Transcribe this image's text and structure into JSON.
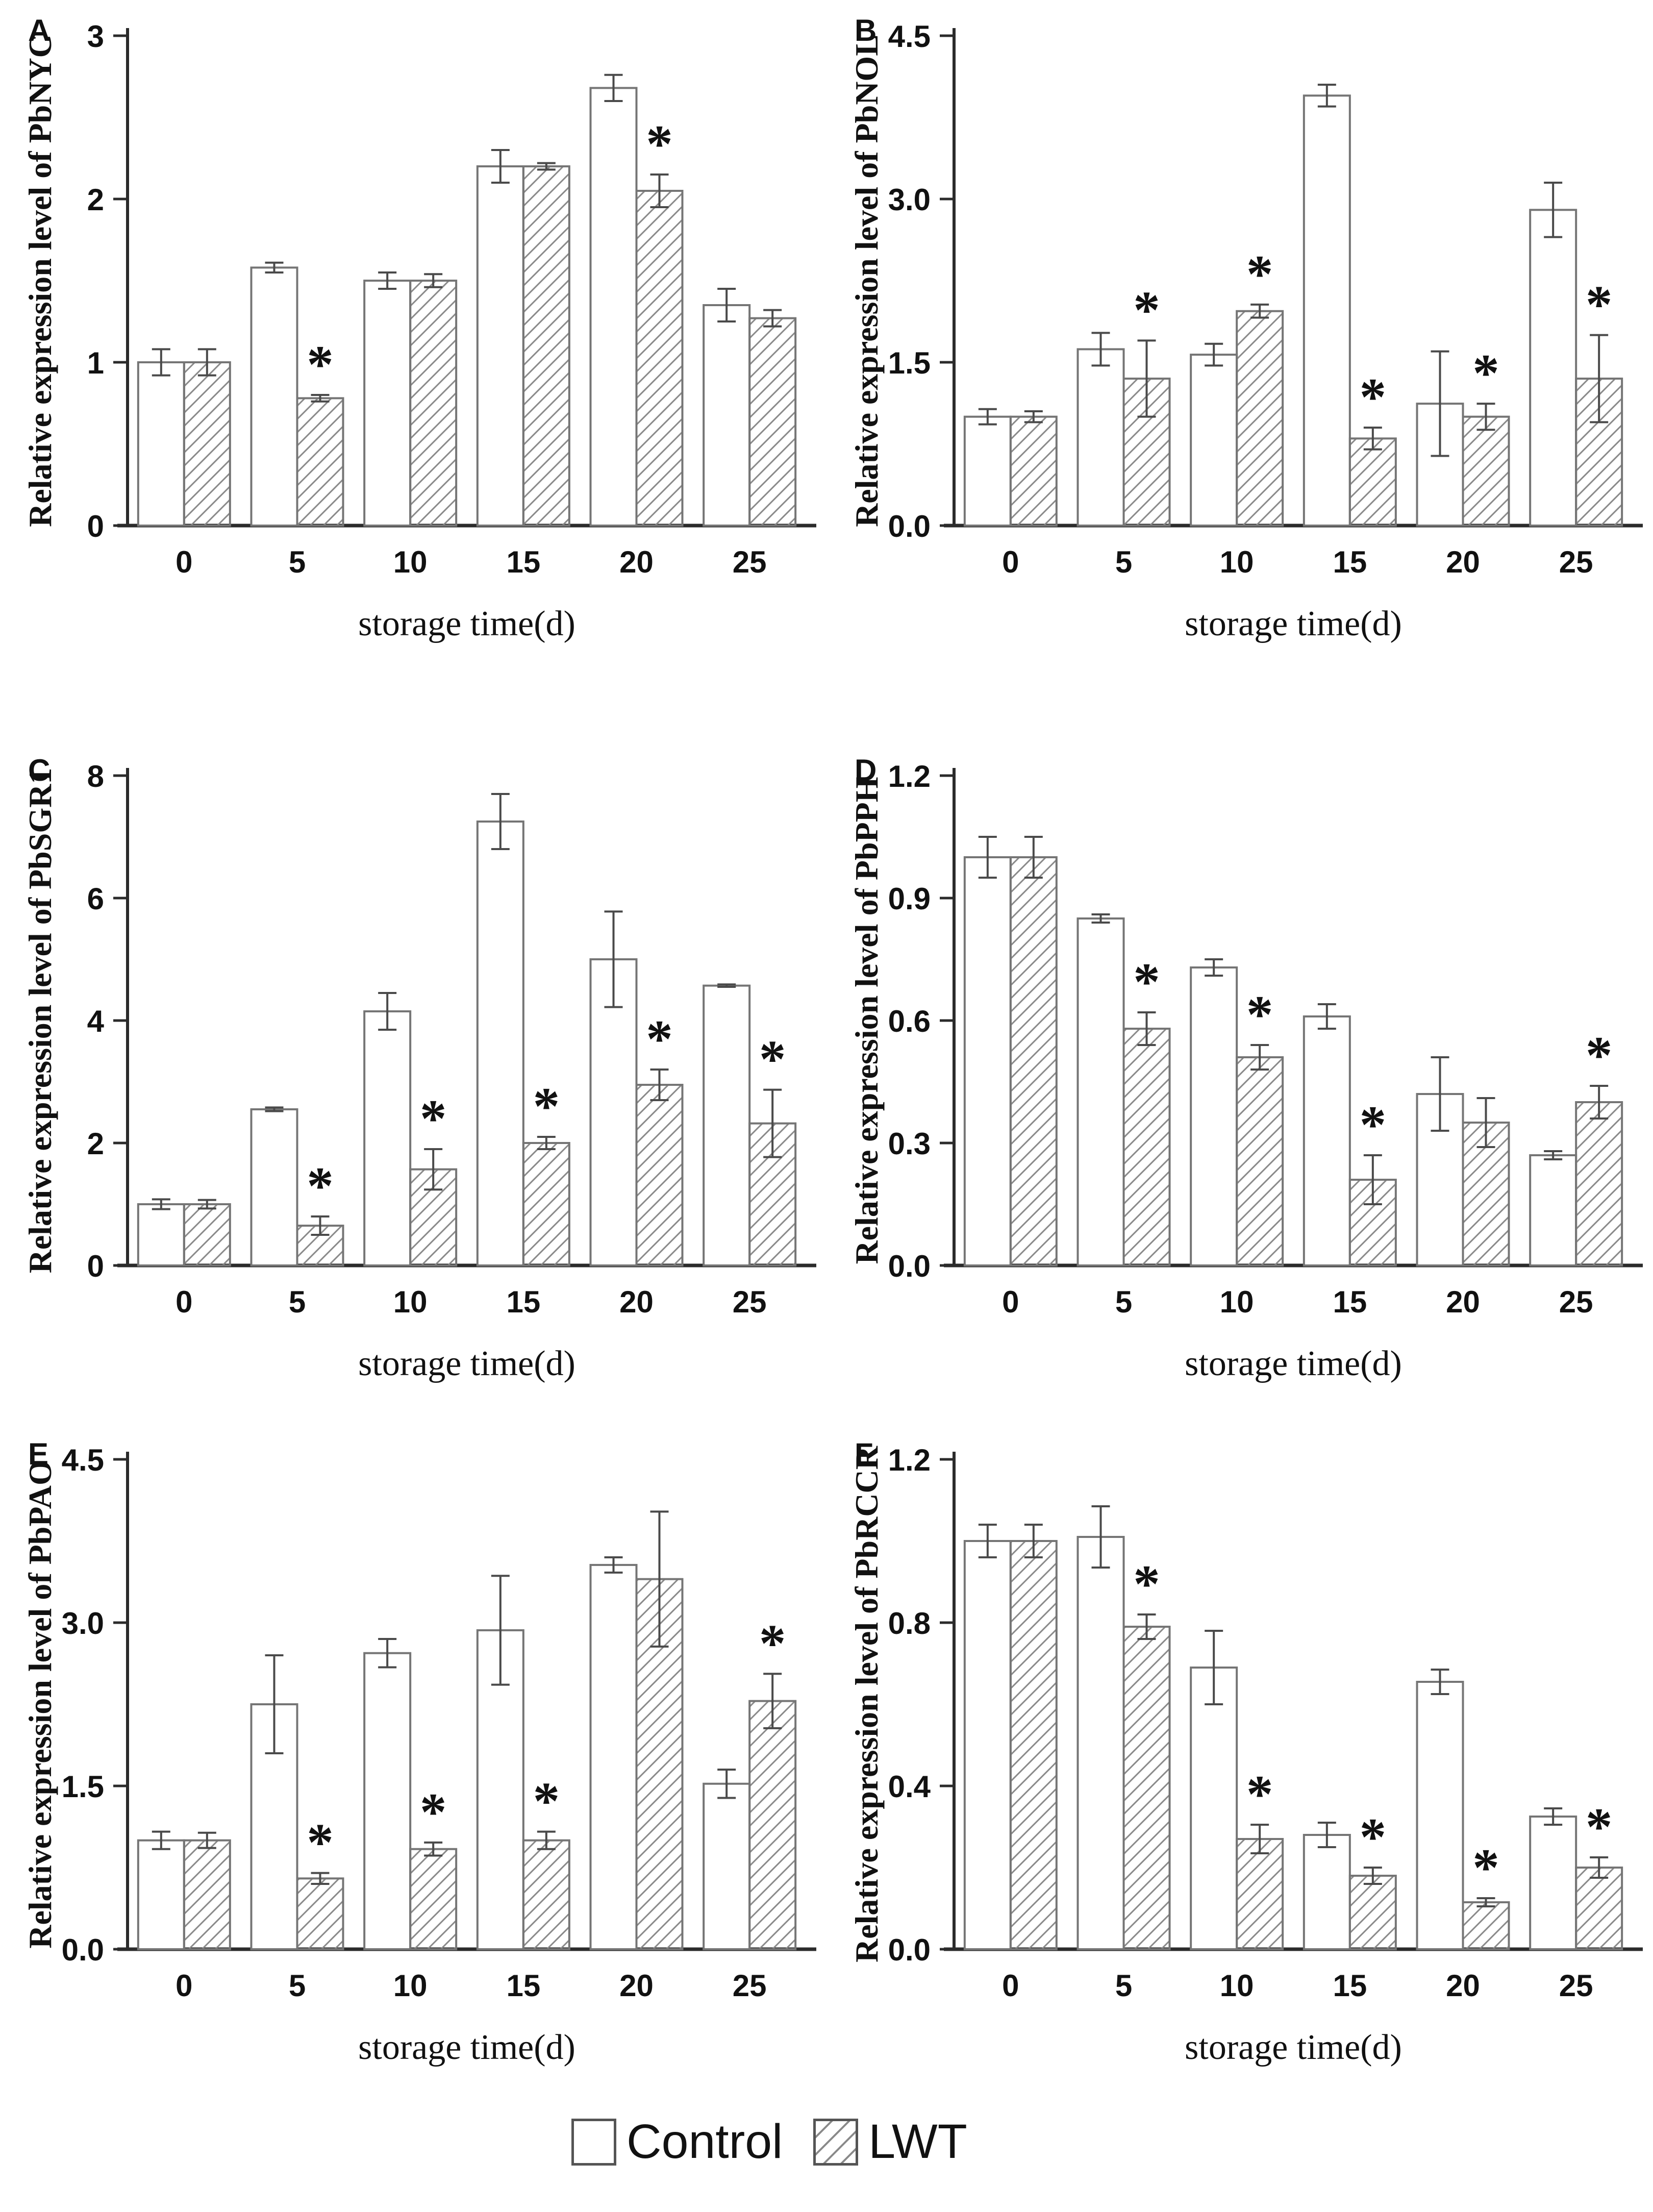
{
  "figure": {
    "xlabel": "storage time(d)",
    "significance_marker": "*",
    "legend": [
      {
        "label": "Control",
        "fill": "white"
      },
      {
        "label": "LWT",
        "fill": "hatched"
      }
    ],
    "colors": {
      "bar_stroke": "#757575",
      "hatch_line": "#8a8a8a",
      "error_bar": "#4a4a4a",
      "axis": "#2b2b2b",
      "text": "#111111"
    }
  },
  "chart_data": [
    {
      "type": "bar",
      "panel": "A",
      "ylabel": "Relative expression level of PbNYC",
      "xlabel": "storage time(d)",
      "categories": [
        "0",
        "5",
        "10",
        "15",
        "20",
        "25"
      ],
      "ylim": [
        0,
        3
      ],
      "yticks": [
        0,
        1,
        2,
        3
      ],
      "ytick_labels": [
        "0",
        "1",
        "2",
        "3"
      ],
      "series": [
        {
          "name": "Control",
          "values": [
            1.0,
            1.58,
            1.5,
            2.2,
            2.68,
            1.35
          ],
          "errors": [
            0.08,
            0.03,
            0.05,
            0.1,
            0.08,
            0.1
          ]
        },
        {
          "name": "LWT",
          "values": [
            1.0,
            0.78,
            1.5,
            2.2,
            2.05,
            1.27
          ],
          "errors": [
            0.08,
            0.02,
            0.04,
            0.02,
            0.1,
            0.05
          ]
        }
      ],
      "asterisks_on_lwt": [
        1,
        4
      ]
    },
    {
      "type": "bar",
      "panel": "B",
      "ylabel": "Relative expression level of PbNOL",
      "xlabel": "storage time(d)",
      "categories": [
        "0",
        "5",
        "10",
        "15",
        "20",
        "25"
      ],
      "ylim": [
        0,
        4.5
      ],
      "yticks": [
        0,
        1.5,
        3.0,
        4.5
      ],
      "ytick_labels": [
        "0.0",
        "1.5",
        "3.0",
        "4.5"
      ],
      "series": [
        {
          "name": "Control",
          "values": [
            1.0,
            1.62,
            1.57,
            3.95,
            1.12,
            2.9
          ],
          "errors": [
            0.07,
            0.15,
            0.1,
            0.1,
            0.48,
            0.25
          ]
        },
        {
          "name": "LWT",
          "values": [
            1.0,
            1.35,
            1.97,
            0.8,
            1.0,
            1.35
          ],
          "errors": [
            0.05,
            0.35,
            0.06,
            0.1,
            0.12,
            0.4
          ]
        }
      ],
      "asterisks_on_lwt": [
        1,
        2,
        3,
        4,
        5
      ]
    },
    {
      "type": "bar",
      "panel": "C",
      "ylabel": "Relative expression level of PbSGR1",
      "xlabel": "storage time(d)",
      "categories": [
        "0",
        "5",
        "10",
        "15",
        "20",
        "25"
      ],
      "ylim": [
        0,
        8
      ],
      "yticks": [
        0,
        2,
        4,
        6,
        8
      ],
      "ytick_labels": [
        "0",
        "2",
        "4",
        "6",
        "8"
      ],
      "series": [
        {
          "name": "Control",
          "values": [
            1.0,
            2.55,
            4.15,
            7.25,
            5.0,
            4.57
          ],
          "errors": [
            0.08,
            0.03,
            0.3,
            0.45,
            0.78,
            0.02
          ]
        },
        {
          "name": "LWT",
          "values": [
            1.0,
            0.65,
            1.57,
            2.0,
            2.95,
            2.32
          ],
          "errors": [
            0.07,
            0.15,
            0.33,
            0.1,
            0.25,
            0.55
          ]
        }
      ],
      "asterisks_on_lwt": [
        1,
        2,
        3,
        4,
        5
      ]
    },
    {
      "type": "bar",
      "panel": "D",
      "ylabel": "Relative expression level of PbPPH",
      "xlabel": "storage time(d)",
      "categories": [
        "0",
        "5",
        "10",
        "15",
        "20",
        "25"
      ],
      "ylim": [
        0,
        1.2
      ],
      "yticks": [
        0,
        0.3,
        0.6,
        0.9,
        1.2
      ],
      "ytick_labels": [
        "0.0",
        "0.3",
        "0.6",
        "0.9",
        "1.2"
      ],
      "series": [
        {
          "name": "Control",
          "values": [
            1.0,
            0.85,
            0.73,
            0.61,
            0.42,
            0.27
          ],
          "errors": [
            0.05,
            0.01,
            0.02,
            0.03,
            0.09,
            0.01
          ]
        },
        {
          "name": "LWT",
          "values": [
            1.0,
            0.58,
            0.51,
            0.21,
            0.35,
            0.4
          ],
          "errors": [
            0.05,
            0.04,
            0.03,
            0.06,
            0.06,
            0.04
          ]
        }
      ],
      "asterisks_on_lwt": [
        1,
        2,
        3,
        5
      ]
    },
    {
      "type": "bar",
      "panel": "E",
      "ylabel": "Relative expression level of PbPAO",
      "xlabel": "storage time(d)",
      "categories": [
        "0",
        "5",
        "10",
        "15",
        "20",
        "25"
      ],
      "ylim": [
        0,
        4.5
      ],
      "yticks": [
        0,
        1.5,
        3.0,
        4.5
      ],
      "ytick_labels": [
        "0.0",
        "1.5",
        "3.0",
        "4.5"
      ],
      "series": [
        {
          "name": "Control",
          "values": [
            1.0,
            2.25,
            2.72,
            2.93,
            3.53,
            1.52
          ],
          "errors": [
            0.08,
            0.45,
            0.13,
            0.5,
            0.07,
            0.13
          ]
        },
        {
          "name": "LWT",
          "values": [
            1.0,
            0.65,
            0.92,
            1.0,
            3.4,
            2.28
          ],
          "errors": [
            0.07,
            0.05,
            0.06,
            0.08,
            0.62,
            0.25
          ]
        }
      ],
      "asterisks_on_lwt": [
        1,
        2,
        3,
        5
      ]
    },
    {
      "type": "bar",
      "panel": "F",
      "ylabel": "Relative expression level of PbRCCR",
      "xlabel": "storage time(d)",
      "categories": [
        "0",
        "5",
        "10",
        "15",
        "20",
        "25"
      ],
      "ylim": [
        0,
        1.2
      ],
      "yticks": [
        0,
        0.4,
        0.8,
        1.2
      ],
      "ytick_labels": [
        "0.0",
        "0.4",
        "0.8",
        "1.2"
      ],
      "series": [
        {
          "name": "Control",
          "values": [
            1.0,
            1.01,
            0.69,
            0.28,
            0.655,
            0.325
          ],
          "errors": [
            0.04,
            0.075,
            0.09,
            0.03,
            0.03,
            0.02
          ]
        },
        {
          "name": "LWT",
          "values": [
            1.0,
            0.79,
            0.27,
            0.18,
            0.115,
            0.2
          ],
          "errors": [
            0.04,
            0.03,
            0.035,
            0.02,
            0.01,
            0.025
          ]
        }
      ],
      "asterisks_on_lwt": [
        1,
        2,
        3,
        4,
        5
      ]
    }
  ]
}
